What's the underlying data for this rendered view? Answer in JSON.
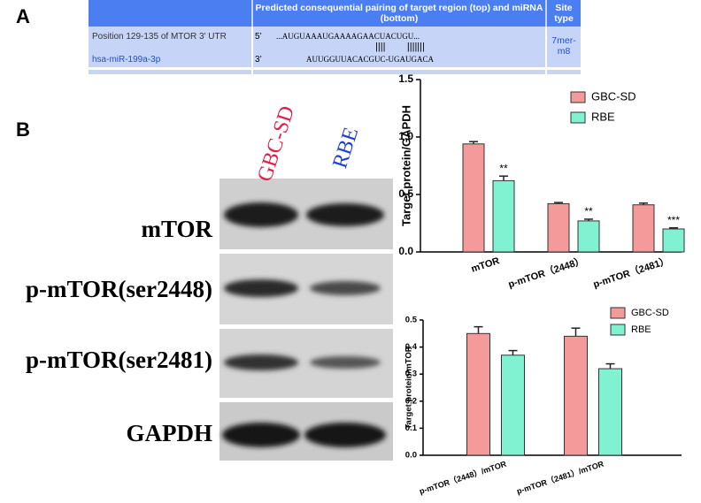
{
  "panel_labels": [
    "A",
    "B"
  ],
  "table": {
    "header": [
      "Predicted consequential pairing of target region (top) and miRNA (bottom)",
      "Site type"
    ],
    "row": {
      "position": "Position 129-135 of MTOR 3' UTR",
      "end5": "5’",
      "target": "...AUGUAAAUGAAAAGAACUACUGU...",
      "pairing": "||||        |||||||",
      "mirna": "hsa-miR-199a-3p",
      "end3": "3’",
      "mirna_seq": "AUUGGUUACACGUC-UGAUGACA",
      "site_type": "7mer-m8"
    }
  },
  "blot": {
    "lanes": [
      "GBC-SD",
      "RBE"
    ],
    "proteins": [
      "mTOR",
      "p-mTOR(ser2448)",
      "p-mTOR(ser2481)",
      "GAPDH"
    ]
  },
  "chart_data": [
    {
      "type": "bar",
      "ylabel": "Target protein/GAPDH",
      "categories": [
        "mTOR",
        "p-mTOR（2448）",
        "p-mTOR（2481）"
      ],
      "series": [
        {
          "name": "GBC-SD",
          "color": "#f59a9a",
          "values": [
            0.94,
            0.42,
            0.41
          ],
          "errors": [
            0.02,
            0.01,
            0.015
          ]
        },
        {
          "name": "RBE",
          "color": "#80f2d2",
          "values": [
            0.62,
            0.27,
            0.2
          ],
          "errors": [
            0.04,
            0.015,
            0.01
          ]
        }
      ],
      "annotations": [
        "**",
        "**",
        "***"
      ],
      "ylim": [
        0,
        1.5
      ],
      "yticks": [
        {
          "value": 0,
          "label": "0.0"
        },
        {
          "value": 0.5,
          "label": "0.5"
        },
        {
          "value": 1,
          "label": "1.0"
        },
        {
          "value": 1.5,
          "label": "1.5"
        }
      ],
      "legend": "upper right"
    },
    {
      "type": "bar",
      "ylabel": "Target protein/mTOR",
      "categories": [
        "p-mTOR（2448）/mTOR",
        "p-mTOR（2481）/mTOR"
      ],
      "series": [
        {
          "name": "GBC-SD",
          "color": "#f59a9a",
          "values": [
            0.45,
            0.44
          ],
          "errors": [
            0.025,
            0.03
          ]
        },
        {
          "name": "RBE",
          "color": "#80f2d2",
          "values": [
            0.37,
            0.32
          ],
          "errors": [
            0.017,
            0.018
          ]
        }
      ],
      "ylim": [
        0,
        0.5
      ],
      "yticks": [
        {
          "value": 0,
          "label": "0.0"
        },
        0.1,
        0.2,
        0.3,
        0.4,
        0.5
      ],
      "legend": "upper right"
    }
  ]
}
